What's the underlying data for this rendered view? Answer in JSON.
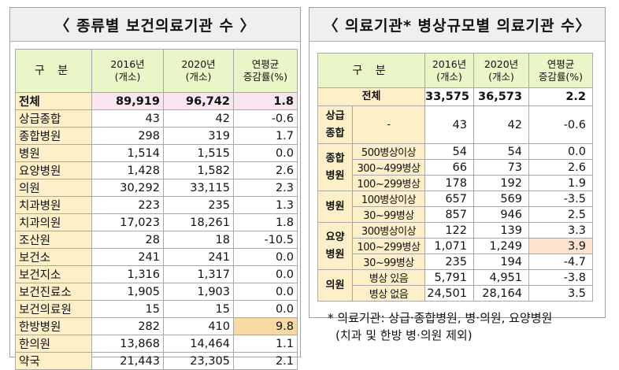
{
  "left_panel": {
    "title": "〈 종류별 보건의료기관 수 〉",
    "headers": {
      "category": "구 분",
      "y2016": [
        "2016년",
        "(개소)"
      ],
      "y2020": [
        "2020년",
        "(개소)"
      ],
      "rate": [
        "연평균",
        "증감률(%)"
      ]
    },
    "rows": [
      {
        "label": "전체",
        "y2016": "89,919",
        "y2020": "96,742",
        "rate": "1.8",
        "total": true
      },
      {
        "label": "상급종합",
        "y2016": "43",
        "y2020": "42",
        "rate": "-0.6"
      },
      {
        "label": "종합병원",
        "y2016": "298",
        "y2020": "319",
        "rate": "1.7"
      },
      {
        "label": "병원",
        "y2016": "1,514",
        "y2020": "1,515",
        "rate": "0.0"
      },
      {
        "label": "요양병원",
        "y2016": "1,428",
        "y2020": "1,582",
        "rate": "2.6"
      },
      {
        "label": "의원",
        "y2016": "30,292",
        "y2020": "33,115",
        "rate": "2.3"
      },
      {
        "label": "치과병원",
        "y2016": "223",
        "y2020": "235",
        "rate": "1.3"
      },
      {
        "label": "치과의원",
        "y2016": "17,023",
        "y2020": "18,261",
        "rate": "1.8"
      },
      {
        "label": "조산원",
        "y2016": "28",
        "y2020": "18",
        "rate": "-10.5"
      },
      {
        "label": "보건소",
        "y2016": "241",
        "y2020": "241",
        "rate": "0.0"
      },
      {
        "label": "보건지소",
        "y2016": "1,316",
        "y2020": "1,317",
        "rate": "0.0"
      },
      {
        "label": "보건진료소",
        "y2016": "1,905",
        "y2020": "1,903",
        "rate": "0.0"
      },
      {
        "label": "보건의료원",
        "y2016": "15",
        "y2020": "15",
        "rate": "0.0"
      },
      {
        "label": "한방병원",
        "y2016": "282",
        "y2020": "410",
        "rate": "9.8",
        "highlight": true
      },
      {
        "label": "한의원",
        "y2016": "13,868",
        "y2020": "14,464",
        "rate": "1.1"
      },
      {
        "label": "약국",
        "y2016": "21,443",
        "y2020": "23,305",
        "rate": "2.1"
      }
    ]
  },
  "right_panel": {
    "title": "〈 의료기관* 병상규모별 의료기관 수〉",
    "headers": {
      "category": "구 분",
      "y2016": [
        "2016년",
        "(개소)"
      ],
      "y2020": [
        "2020년",
        "(개소)"
      ],
      "rate": [
        "연평균",
        "증감률(%)"
      ]
    },
    "total": {
      "label": "전체",
      "y2016": "33,575",
      "y2020": "36,573",
      "rate": "2.2"
    },
    "groups": [
      {
        "label": "상급\n종합",
        "rows": [
          {
            "sub": "-",
            "y2016": "43",
            "y2020": "42",
            "rate": "-0.6"
          }
        ]
      },
      {
        "label": "종합\n병원",
        "rows": [
          {
            "sub": "500병상이상",
            "y2016": "54",
            "y2020": "54",
            "rate": "0.0"
          },
          {
            "sub": "300~499병상",
            "y2016": "66",
            "y2020": "73",
            "rate": "2.6"
          },
          {
            "sub": "100~299병상",
            "y2016": "178",
            "y2020": "192",
            "rate": "1.9"
          }
        ]
      },
      {
        "label": "병원",
        "rows": [
          {
            "sub": "100병상이상",
            "y2016": "657",
            "y2020": "569",
            "rate": "-3.5"
          },
          {
            "sub": "30~99병상",
            "y2016": "857",
            "y2020": "946",
            "rate": "2.5"
          }
        ]
      },
      {
        "label": "요양\n병원",
        "rows": [
          {
            "sub": "300병상이상",
            "y2016": "122",
            "y2020": "139",
            "rate": "3.3"
          },
          {
            "sub": "100~299병상",
            "y2016": "1,071",
            "y2020": "1,249",
            "rate": "3.9",
            "highlight": true
          },
          {
            "sub": "30~99병상",
            "y2016": "235",
            "y2020": "194",
            "rate": "-4.7"
          }
        ]
      },
      {
        "label": "의원",
        "rows": [
          {
            "sub": "병상 있음",
            "y2016": "5,791",
            "y2020": "4,951",
            "rate": "-3.8"
          },
          {
            "sub": "병상 없음",
            "y2016": "24,501",
            "y2020": "28,164",
            "rate": "3.5"
          }
        ]
      }
    ],
    "footnote": {
      "line1": "* 의료기관: 상급·종합병원, 병·의원, 요양병원",
      "line2": "(치과 및 한방 병·의원 제외)"
    }
  },
  "colors": {
    "header_bg": "#e9f6c8",
    "label_bg": "#fdefc8",
    "total_row_bg": "#f9e6f0",
    "highlight_left": "#f8d9a3",
    "highlight_right": "#fbe3cf",
    "title_bg": "#efefef"
  }
}
